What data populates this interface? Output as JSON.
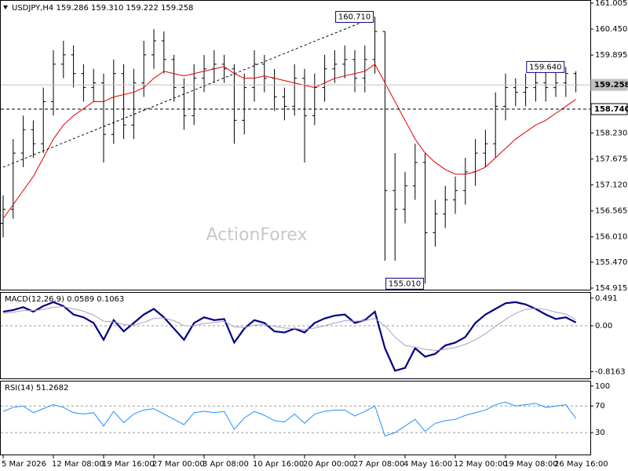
{
  "chart_data": [
    {
      "type": "ohlc",
      "title": "USDJPY,H4  159.286 159.310 159.222 159.258",
      "watermark": "ActionForex",
      "color": "#000000",
      "categories": [
        "5 Mar 2026",
        null,
        null,
        null,
        null,
        "12 Mar 08:00",
        null,
        null,
        null,
        null,
        "19 Mar 16:00",
        null,
        null,
        null,
        null,
        "27 Mar 00:00",
        null,
        null,
        null,
        null,
        "3 Apr 08:00",
        null,
        null,
        null,
        null,
        "10 Apr 16:00",
        null,
        null,
        null,
        null,
        "20 Apr 00:00",
        null,
        null,
        null,
        null,
        "27 Apr 08:00",
        null,
        null,
        null,
        null,
        "4 May 16:00",
        null,
        null,
        null,
        null,
        "12 May 00:00",
        null,
        null,
        null,
        null,
        "19 May 08:00",
        null,
        null,
        null,
        null,
        "26 May 16:00",
        null,
        null
      ],
      "open": [
        156.3,
        156.6,
        157.8,
        158.3,
        158.0,
        158.9,
        159.7,
        159.9,
        159.5,
        159.2,
        159.3,
        158.2,
        159.5,
        158.4,
        159.3,
        159.9,
        160.2,
        159.8,
        159.2,
        158.6,
        159.4,
        159.6,
        159.7,
        159.6,
        158.5,
        159.2,
        159.7,
        159.4,
        159.0,
        158.8,
        159.4,
        158.6,
        159.2,
        159.6,
        159.7,
        159.8,
        159.4,
        159.8,
        160.4,
        157.0,
        156.6,
        157.1,
        157.6,
        156.1,
        156.5,
        156.8,
        157.0,
        157.4,
        157.8,
        158.0,
        158.8,
        159.2,
        159.1,
        159.2,
        159.3,
        159.2,
        159.3,
        159.5
      ],
      "high": [
        156.9,
        158.1,
        158.6,
        158.5,
        159.2,
        160.0,
        160.2,
        160.1,
        159.7,
        159.6,
        159.5,
        159.8,
        159.7,
        159.6,
        160.2,
        160.45,
        160.4,
        159.9,
        159.4,
        159.7,
        159.9,
        160.0,
        159.9,
        159.7,
        159.5,
        160.0,
        159.9,
        159.6,
        159.2,
        159.7,
        159.6,
        159.5,
        159.9,
        160.0,
        160.1,
        160.0,
        160.1,
        160.71,
        160.4,
        157.8,
        157.4,
        158.0,
        157.8,
        156.8,
        157.1,
        157.3,
        157.7,
        158.1,
        158.3,
        159.1,
        159.5,
        159.4,
        159.5,
        159.6,
        159.6,
        159.6,
        159.64,
        159.55
      ],
      "low": [
        156.0,
        156.4,
        157.5,
        157.7,
        157.8,
        158.6,
        159.4,
        159.2,
        158.9,
        158.9,
        157.6,
        158.0,
        158.1,
        158.1,
        159.0,
        159.6,
        159.5,
        158.9,
        158.3,
        158.4,
        159.1,
        159.3,
        159.3,
        158.0,
        158.2,
        158.9,
        159.1,
        158.7,
        158.5,
        158.6,
        157.6,
        158.4,
        158.9,
        159.3,
        159.4,
        159.1,
        159.1,
        159.5,
        155.5,
        155.5,
        156.3,
        156.8,
        155.01,
        155.8,
        156.2,
        156.5,
        156.7,
        157.1,
        157.5,
        157.7,
        158.5,
        158.8,
        158.8,
        158.9,
        158.9,
        159.0,
        159.0,
        159.1
      ],
      "close": [
        156.6,
        157.8,
        158.3,
        158.0,
        158.9,
        159.7,
        159.9,
        159.5,
        159.2,
        159.3,
        158.2,
        159.5,
        158.4,
        159.3,
        159.9,
        160.2,
        159.8,
        159.2,
        158.6,
        159.4,
        159.6,
        159.7,
        159.6,
        158.5,
        159.2,
        159.7,
        159.4,
        159.0,
        158.8,
        159.4,
        158.6,
        159.2,
        159.6,
        159.7,
        159.8,
        159.4,
        159.8,
        160.4,
        157.0,
        156.6,
        157.1,
        157.6,
        156.1,
        156.5,
        156.8,
        157.0,
        157.4,
        157.8,
        158.0,
        158.8,
        159.2,
        159.1,
        159.2,
        159.3,
        159.2,
        159.3,
        159.5,
        159.258
      ],
      "ma": {
        "color": "#e00000",
        "values": [
          156.4,
          156.7,
          157.0,
          157.3,
          157.7,
          158.1,
          158.4,
          158.6,
          158.75,
          158.9,
          158.9,
          159.0,
          159.05,
          159.1,
          159.2,
          159.4,
          159.55,
          159.5,
          159.45,
          159.5,
          159.55,
          159.6,
          159.65,
          159.5,
          159.4,
          159.4,
          159.45,
          159.4,
          159.35,
          159.3,
          159.25,
          159.2,
          159.3,
          159.4,
          159.45,
          159.5,
          159.55,
          159.7,
          159.3,
          158.9,
          158.5,
          158.1,
          157.8,
          157.6,
          157.45,
          157.35,
          157.35,
          157.4,
          157.5,
          157.7,
          157.9,
          158.1,
          158.25,
          158.4,
          158.5,
          158.65,
          158.8,
          158.95
        ]
      },
      "trendline": {
        "x": [
          0,
          37
        ],
        "y": [
          157.5,
          160.71
        ]
      },
      "hlines": [
        {
          "value": 158.74,
          "label": "158.740",
          "dashed": true,
          "color": "#000000",
          "box": "#ffffff"
        },
        {
          "value": 159.258,
          "label": "159.258",
          "dashed": false,
          "color": "#c0c0c0",
          "box": "#c0c0c0"
        }
      ],
      "annotations": [
        {
          "index": 37,
          "value": 160.71,
          "label": "160.710"
        },
        {
          "index": 42,
          "value": 155.01,
          "label": "155.010"
        },
        {
          "index": 56,
          "value": 159.64,
          "label": "159.640"
        }
      ],
      "ylim": [
        154.865,
        161.072
      ],
      "yticks": [
        161.005,
        {
          "value": 160.45,
          "label": "160.450"
        },
        159.895,
        {
          "value": 158.23,
          "label": "158.230"
        },
        157.675,
        {
          "value": 157.12,
          "label": "157.120"
        },
        156.565,
        {
          "value": 156.01,
          "label": "156.010"
        },
        {
          "value": 155.47,
          "label": "155.470"
        },
        154.915
      ]
    },
    {
      "type": "line",
      "title": "MACD(12,26,9) 0.0589 0.1063",
      "ylim": [
        -0.95,
        0.6
      ],
      "yticks": [
        0.491,
        {
          "value": 0,
          "label": "0.00"
        },
        -0.8163
      ],
      "levels": [
        0
      ],
      "series": [
        {
          "color": "#000080",
          "width": 2.2,
          "values": [
            0.25,
            0.28,
            0.33,
            0.25,
            0.35,
            0.42,
            0.35,
            0.2,
            0.15,
            0.05,
            -0.25,
            0.1,
            -0.1,
            0.05,
            0.2,
            0.3,
            0.15,
            -0.05,
            -0.25,
            0.05,
            0.15,
            0.1,
            0.12,
            -0.3,
            -0.05,
            0.1,
            0.05,
            -0.1,
            -0.12,
            -0.05,
            -0.12,
            0.05,
            0.13,
            0.18,
            0.2,
            0.05,
            0.1,
            0.25,
            -0.4,
            -0.8,
            -0.75,
            -0.4,
            -0.55,
            -0.5,
            -0.35,
            -0.3,
            -0.2,
            0.05,
            0.2,
            0.3,
            0.4,
            0.42,
            0.38,
            0.3,
            0.2,
            0.12,
            0.15,
            0.0589
          ]
        },
        {
          "color": "#a8a0c8",
          "width": 1,
          "values": [
            0.22,
            0.24,
            0.27,
            0.27,
            0.29,
            0.33,
            0.34,
            0.3,
            0.26,
            0.19,
            0.08,
            0.07,
            0.02,
            0.01,
            0.06,
            0.13,
            0.14,
            0.09,
            0.0,
            0.0,
            0.04,
            0.06,
            0.08,
            -0.02,
            -0.03,
            0.01,
            0.02,
            -0.01,
            -0.04,
            -0.05,
            -0.07,
            -0.04,
            0.0,
            0.05,
            0.09,
            0.08,
            0.09,
            0.13,
            0.0,
            -0.2,
            -0.35,
            -0.38,
            -0.42,
            -0.44,
            -0.42,
            -0.39,
            -0.33,
            -0.25,
            -0.14,
            -0.01,
            0.11,
            0.22,
            0.29,
            0.31,
            0.29,
            0.24,
            0.21,
            0.1063
          ]
        }
      ]
    },
    {
      "type": "line",
      "title": "RSI(14) 51.2682",
      "ylim": [
        -4,
        108
      ],
      "yticks": [
        100,
        70,
        30
      ],
      "levels": [
        70,
        30
      ],
      "series": [
        {
          "color": "#1e90ff",
          "width": 1,
          "values": [
            62,
            68,
            70,
            60,
            66,
            72,
            68,
            60,
            58,
            60,
            40,
            62,
            45,
            58,
            64,
            66,
            58,
            50,
            42,
            60,
            62,
            60,
            62,
            35,
            52,
            62,
            56,
            48,
            46,
            58,
            44,
            58,
            62,
            64,
            64,
            55,
            62,
            70,
            25,
            30,
            40,
            50,
            32,
            44,
            48,
            50,
            56,
            60,
            64,
            72,
            76,
            70,
            72,
            74,
            68,
            70,
            72,
            51.2682
          ]
        }
      ]
    }
  ]
}
